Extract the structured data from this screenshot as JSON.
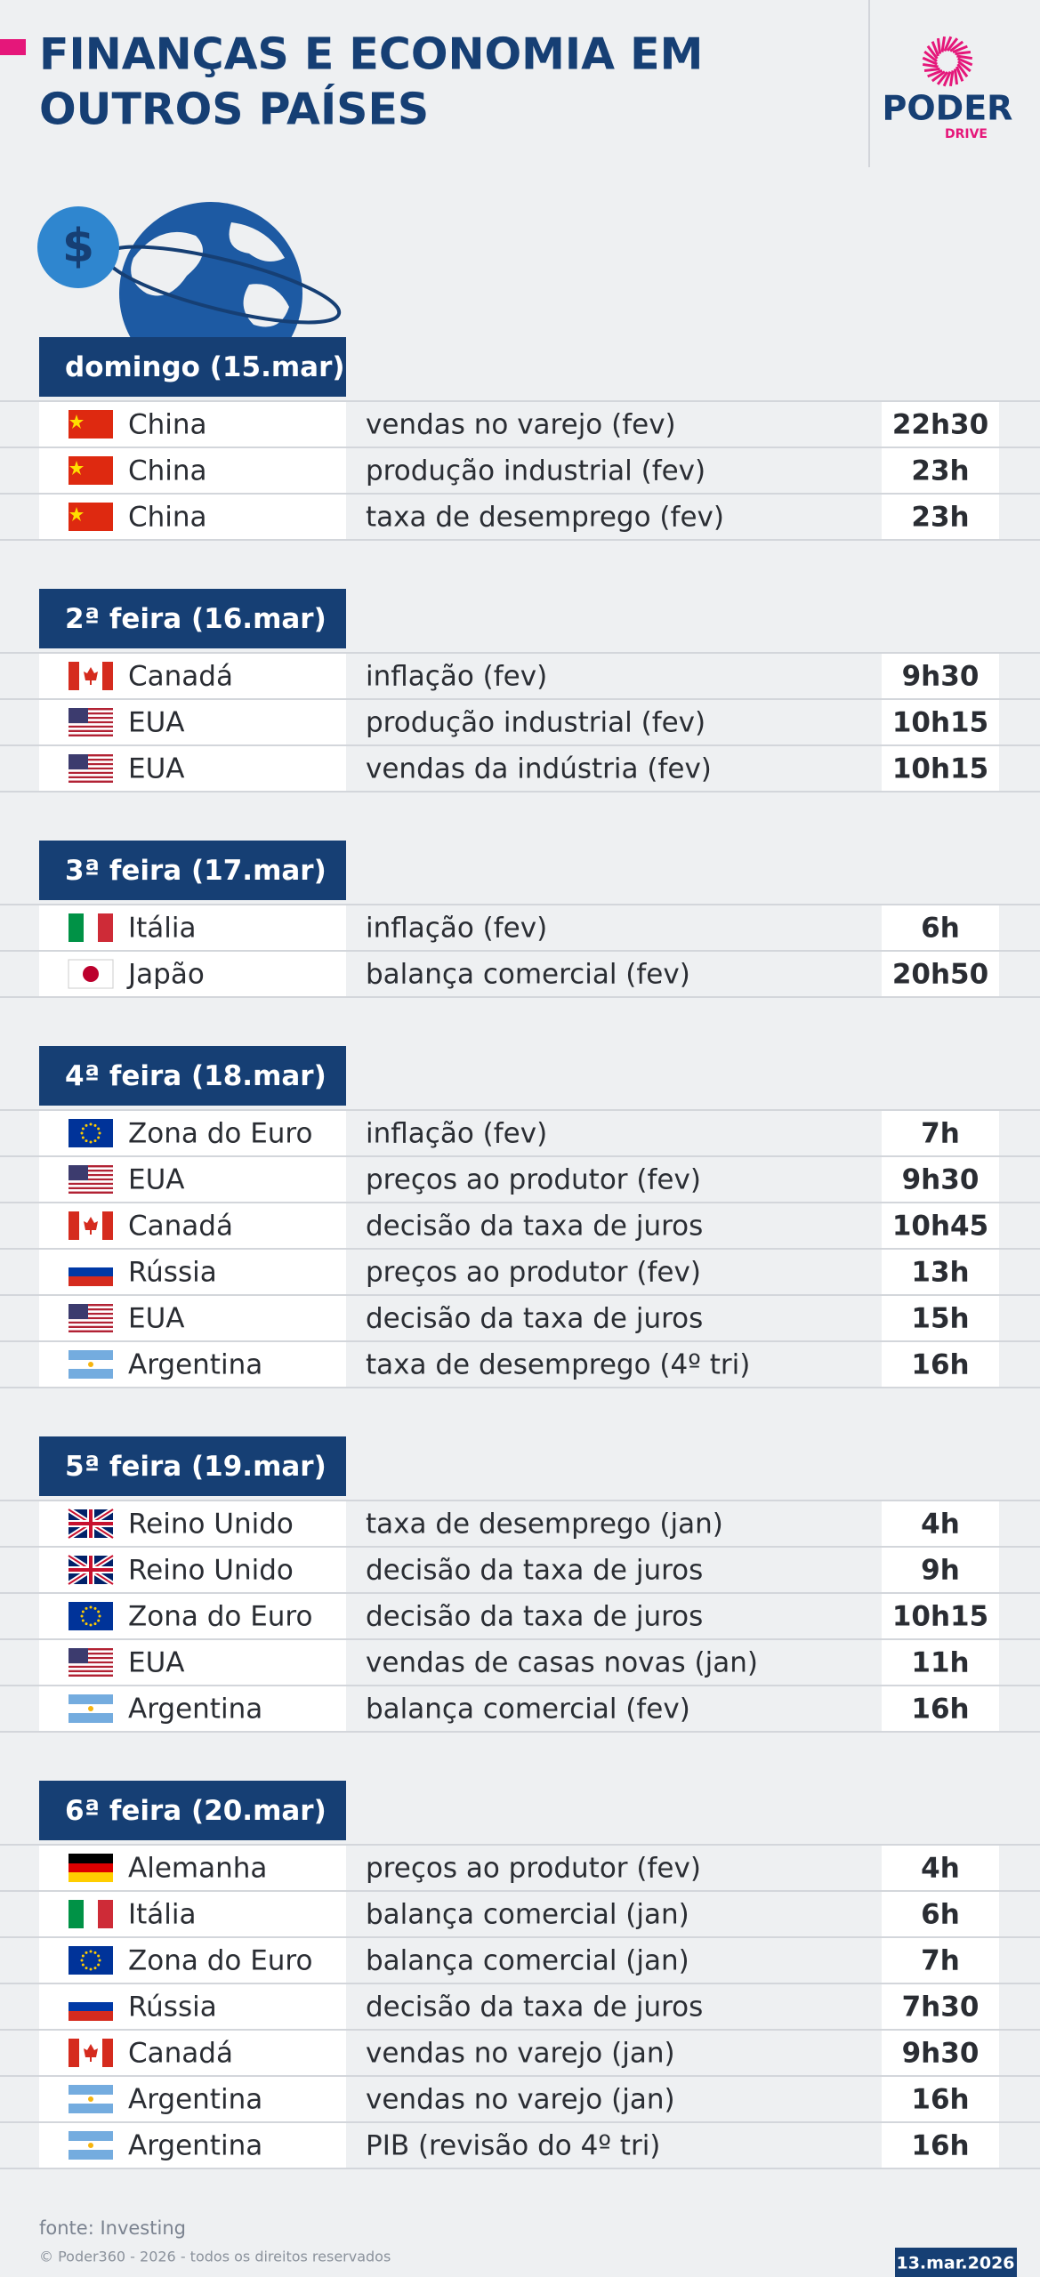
{
  "header": {
    "title_lines": [
      "FINANÇAS E ECONOMIA EM",
      "OUTROS PAÍSES"
    ],
    "logo": {
      "name": "PODER",
      "sub": "DRIVE"
    }
  },
  "days": [
    {
      "label": "domingo (15.mar)",
      "rows": [
        {
          "country": "China",
          "event": "vendas no varejo (fev)",
          "time": "22h30"
        },
        {
          "country": "China",
          "event": "produção industrial (fev)",
          "time": "23h"
        },
        {
          "country": "China",
          "event": "taxa de desemprego (fev)",
          "time": "23h"
        }
      ]
    },
    {
      "label": "2ª feira (16.mar)",
      "rows": [
        {
          "country": "Canadá",
          "event": "inflação (fev)",
          "time": "9h30"
        },
        {
          "country": "EUA",
          "event": "produção industrial (fev)",
          "time": "10h15"
        },
        {
          "country": "EUA",
          "event": "vendas da indústria (fev)",
          "time": "10h15"
        }
      ]
    },
    {
      "label": "3ª feira (17.mar)",
      "rows": [
        {
          "country": "Itália",
          "event": "inflação (fev)",
          "time": "6h"
        },
        {
          "country": "Japão",
          "event": "balança comercial (fev)",
          "time": "20h50"
        }
      ]
    },
    {
      "label": "4ª feira (18.mar)",
      "rows": [
        {
          "country": "Zona do Euro",
          "event": "inflação (fev)",
          "time": "7h"
        },
        {
          "country": "EUA",
          "event": "preços ao produtor (fev)",
          "time": "9h30"
        },
        {
          "country": "Canadá",
          "event": "decisão da taxa de juros",
          "time": "10h45"
        },
        {
          "country": "Rússia",
          "event": "preços ao produtor (fev)",
          "time": "13h"
        },
        {
          "country": "EUA",
          "event": "decisão da taxa de juros",
          "time": "15h"
        },
        {
          "country": "Argentina",
          "event": "taxa de desemprego (4º tri)",
          "time": "16h"
        }
      ]
    },
    {
      "label": "5ª feira (19.mar)",
      "rows": [
        {
          "country": "Reino Unido",
          "event": "taxa de desemprego (jan)",
          "time": "4h"
        },
        {
          "country": "Reino Unido",
          "event": "decisão da taxa de juros",
          "time": "9h"
        },
        {
          "country": "Zona do Euro",
          "event": "decisão da taxa de juros",
          "time": "10h15"
        },
        {
          "country": "EUA",
          "event": "vendas de casas novas (jan)",
          "time": "11h"
        },
        {
          "country": "Argentina",
          "event": "balança comercial (fev)",
          "time": "16h"
        }
      ]
    },
    {
      "label": "6ª feira (20.mar)",
      "rows": [
        {
          "country": "Alemanha",
          "event": "preços ao produtor (fev)",
          "time": "4h"
        },
        {
          "country": "Itália",
          "event": "balança comercial (jan)",
          "time": "6h"
        },
        {
          "country": "Zona do Euro",
          "event": "balança comercial (jan)",
          "time": "7h"
        },
        {
          "country": "Rússia",
          "event": "decisão da taxa de juros",
          "time": "7h30"
        },
        {
          "country": "Canadá",
          "event": "vendas no varejo (jan)",
          "time": "9h30"
        },
        {
          "country": "Argentina",
          "event": "vendas no varejo (jan)",
          "time": "16h"
        },
        {
          "country": "Argentina",
          "event": "PIB (revisão do 4º tri)",
          "time": "16h"
        }
      ]
    }
  ],
  "footer": {
    "source": "fonte: Investing",
    "copyright": "© Poder360 - 2026 - todos os direitos reservados",
    "date": "13.mar.2026"
  }
}
